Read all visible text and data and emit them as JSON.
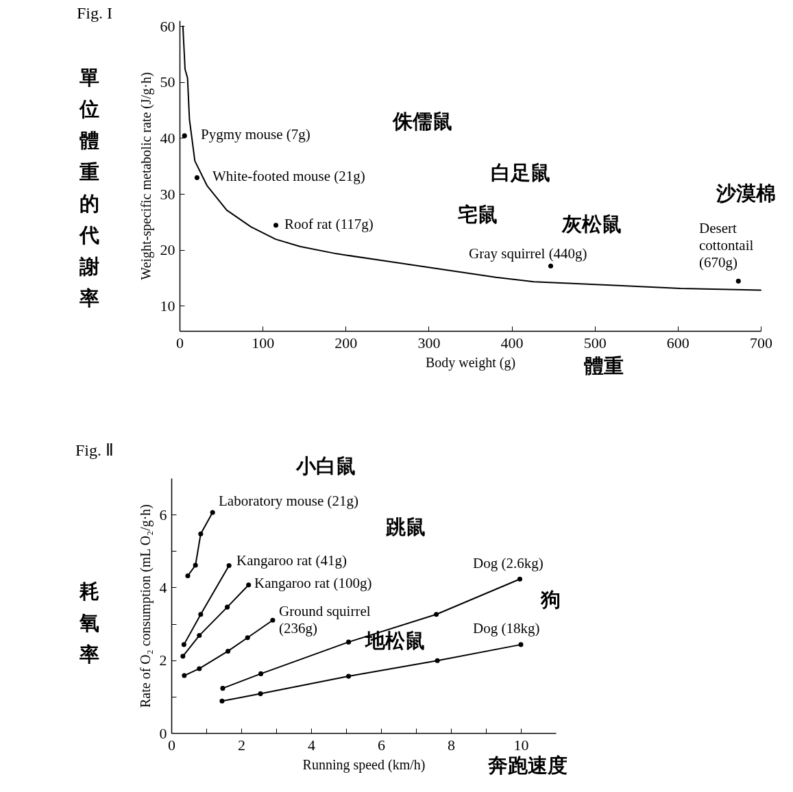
{
  "chart_data": [
    {
      "type": "line",
      "title": "Fig. I",
      "xlabel": "Body weight (g)",
      "ylabel": "Weight-specific metabolic rate (J/g·h)",
      "xlim": [
        0,
        700
      ],
      "ylim": [
        5.5,
        61
      ],
      "xticks": [
        0,
        100,
        200,
        300,
        400,
        500,
        600,
        700
      ],
      "yticks": [
        10,
        20,
        30,
        40,
        50,
        60
      ],
      "series": [
        {
          "type": "line",
          "color": "#000000",
          "marker": "none",
          "x": [
            4,
            6.6,
            9.6,
            11.9,
            18.4,
            33,
            56.7,
            86,
            115.6,
            145,
            189,
            248.5,
            307,
            381,
            426.6,
            515,
            603.5,
            700
          ],
          "values": [
            60,
            52.3,
            50.7,
            43.3,
            35.9,
            31.5,
            27.1,
            24.1,
            21.9,
            20.6,
            19.3,
            18,
            16.7,
            15.1,
            14.3,
            13.7,
            13.1,
            12.8
          ]
        },
        {
          "type": "scatter",
          "color": "#000000",
          "marker": "circle",
          "x": [
            6,
            21,
            116,
            447,
            673
          ],
          "values": [
            40.4,
            32.9,
            24.4,
            17.1,
            14.4
          ]
        }
      ],
      "annotations": [
        "單位體重的代謝率",
        "體重",
        "Pygmy mouse (7g)",
        "White-footed mouse (21g)",
        "Roof rat (117g)",
        "Gray squirrel (440g)",
        "Desert\ncottontail\n(670g)",
        "侏儒鼠",
        "白足鼠",
        "宅鼠",
        "灰松鼠",
        "沙漠棉"
      ]
    },
    {
      "type": "line",
      "title": "Fig. Ⅱ",
      "xlabel": "Running speed (km/h)",
      "ylabel": "Rate of O₂ consumption (mL O₂/g·h)",
      "xlim": [
        0,
        11
      ],
      "ylim": [
        0,
        7
      ],
      "xticks": [
        0,
        {
          "value": 1,
          "label": null
        },
        2,
        {
          "value": 3,
          "label": null
        },
        4,
        {
          "value": 5,
          "label": null
        },
        6,
        {
          "value": 7,
          "label": null
        },
        8,
        {
          "value": 9,
          "label": null
        },
        10
      ],
      "yticks": [
        0,
        {
          "value": 1,
          "label": null
        },
        2,
        {
          "value": 3,
          "label": null
        },
        4,
        {
          "value": 5,
          "label": null
        },
        6
      ],
      "marker": "circle",
      "line_style": "solid",
      "series": [
        {
          "color": "#000000",
          "x": [
            0.47,
            0.69,
            0.84,
            1.18
          ],
          "values": [
            4.32,
            4.61,
            5.47,
            6.06
          ]
        },
        {
          "color": "#000000",
          "x": [
            0.36,
            0.84,
            1.65
          ],
          "values": [
            2.43,
            3.26,
            4.6
          ]
        },
        {
          "color": "#000000",
          "x": [
            0.33,
            0.8,
            1.6,
            2.21
          ],
          "values": [
            2.11,
            2.68,
            3.46,
            4.07
          ]
        },
        {
          "color": "#000000",
          "x": [
            0.37,
            0.8,
            1.62,
            2.18,
            2.9
          ],
          "values": [
            1.58,
            1.77,
            2.25,
            2.62,
            3.1
          ]
        },
        {
          "color": "#000000",
          "x": [
            1.47,
            2.56,
            5.07,
            7.58,
            9.97
          ],
          "values": [
            1.23,
            1.63,
            2.5,
            3.26,
            4.23
          ]
        },
        {
          "color": "#000000",
          "x": [
            1.45,
            2.55,
            5.07,
            7.61,
            10
          ],
          "values": [
            0.88,
            1.08,
            1.56,
            1.99,
            2.43
          ]
        }
      ],
      "annotations": [
        "耗氧率",
        "奔跑速度",
        "小白鼠",
        "Laboratory mouse (21g)",
        "Kangaroo rat (41g)",
        "Kangaroo rat (100g)",
        "Ground squirrel\n(236g)",
        "Dog (2.6kg)",
        "Dog (18kg)",
        "跳鼠",
        "狗",
        "地松鼠"
      ]
    }
  ]
}
